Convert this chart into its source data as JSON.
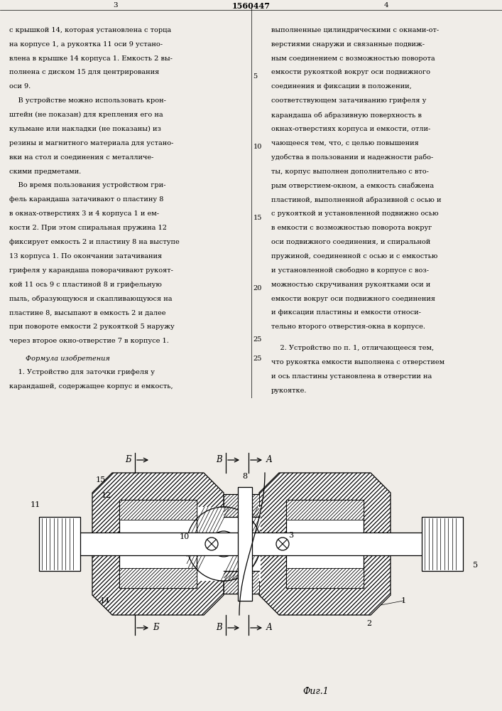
{
  "title": "1560447",
  "page_left": "3",
  "page_right": "4",
  "fig_label": "Фиг.1",
  "bg_color": "#f0ede8",
  "line_color": "#000000",
  "text_color": "#000000"
}
